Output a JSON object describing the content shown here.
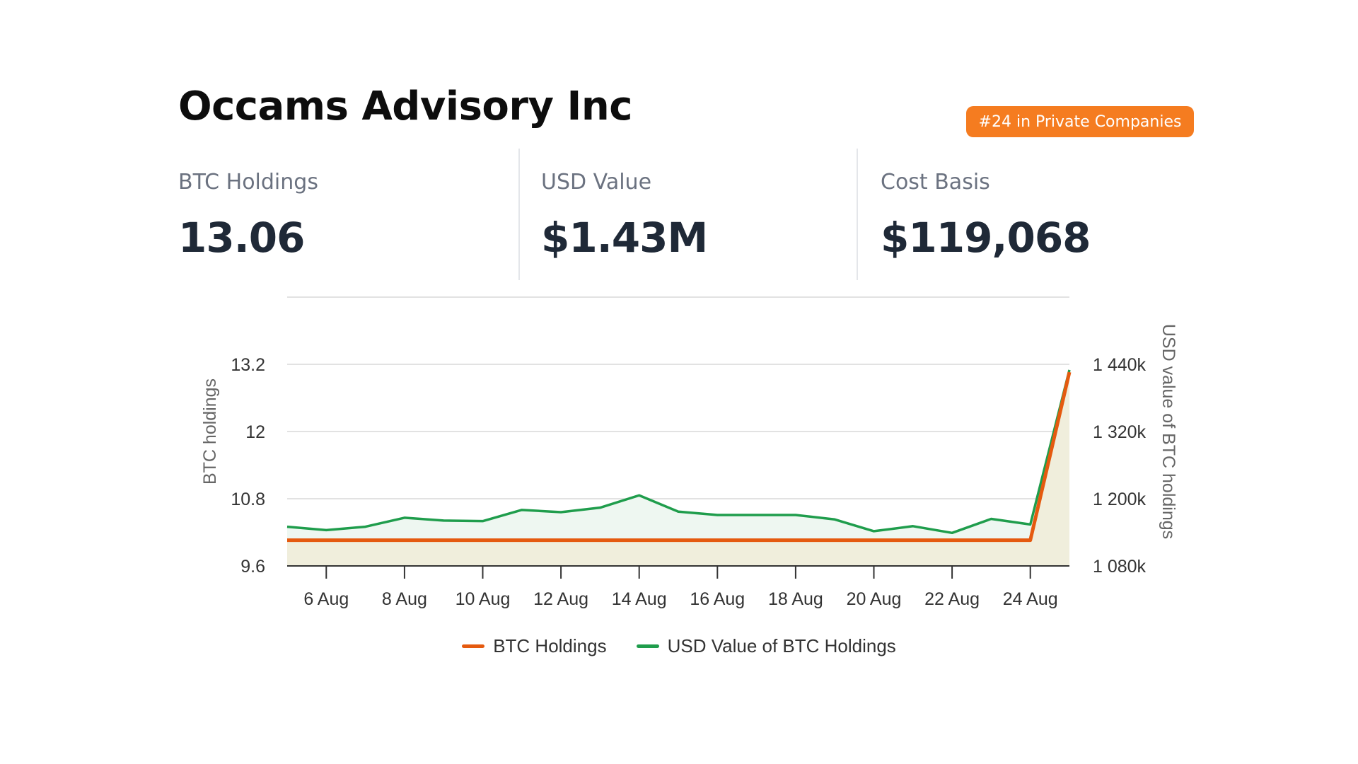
{
  "company": {
    "name": "Occams Advisory Inc",
    "rank_badge": "#24 in Private Companies"
  },
  "stats": [
    {
      "label": "BTC Holdings",
      "value": "13.06"
    },
    {
      "label": "USD Value",
      "value": "$1.43M"
    },
    {
      "label": "Cost Basis",
      "value": "$119,068"
    }
  ],
  "colors": {
    "accent_orange": "#f57c20",
    "btc_line": "#e55a0f",
    "btc_fill": "#f0eedc",
    "usd_line": "#1f9d4c",
    "usd_fill": "#eef7f1",
    "grid": "#d9d9d9"
  },
  "chart_data": {
    "type": "line",
    "x": [
      "5 Aug",
      "6 Aug",
      "7 Aug",
      "8 Aug",
      "9 Aug",
      "10 Aug",
      "11 Aug",
      "12 Aug",
      "13 Aug",
      "14 Aug",
      "15 Aug",
      "16 Aug",
      "17 Aug",
      "18 Aug",
      "19 Aug",
      "20 Aug",
      "21 Aug",
      "22 Aug",
      "23 Aug",
      "24 Aug",
      "25 Aug"
    ],
    "x_tick_labels": [
      "6 Aug",
      "8 Aug",
      "10 Aug",
      "12 Aug",
      "14 Aug",
      "16 Aug",
      "18 Aug",
      "20 Aug",
      "22 Aug",
      "24 Aug"
    ],
    "series": [
      {
        "name": "BTC Holdings",
        "axis": "left",
        "values": [
          10.06,
          10.06,
          10.06,
          10.06,
          10.06,
          10.06,
          10.06,
          10.06,
          10.06,
          10.06,
          10.06,
          10.06,
          10.06,
          10.06,
          10.06,
          10.06,
          10.06,
          10.06,
          10.06,
          10.06,
          13.06
        ]
      },
      {
        "name": "USD Value of BTC Holdings",
        "axis": "right",
        "values": [
          1150000,
          1144000,
          1150000,
          1166000,
          1161000,
          1160000,
          1180000,
          1176000,
          1184000,
          1206000,
          1177000,
          1171000,
          1171000,
          1171000,
          1163000,
          1142000,
          1151000,
          1139000,
          1164000,
          1154000,
          1430000
        ]
      }
    ],
    "ylabel": "BTC holdings",
    "y2label": "USD value of BTC holdings",
    "y_ticks": [
      9.6,
      10.8,
      12,
      13.2
    ],
    "y_tick_labels": [
      "9.6",
      "10.8",
      "12",
      "13.2"
    ],
    "ylim": [
      9.6,
      14.4
    ],
    "y2_ticks": [
      1080000,
      1200000,
      1320000,
      1440000
    ],
    "y2_tick_labels": [
      "1 080k",
      "1 200k",
      "1 320k",
      "1 440k"
    ],
    "y2lim": [
      1080000,
      1560000
    ],
    "grid": true,
    "legend": "bottom-center"
  }
}
